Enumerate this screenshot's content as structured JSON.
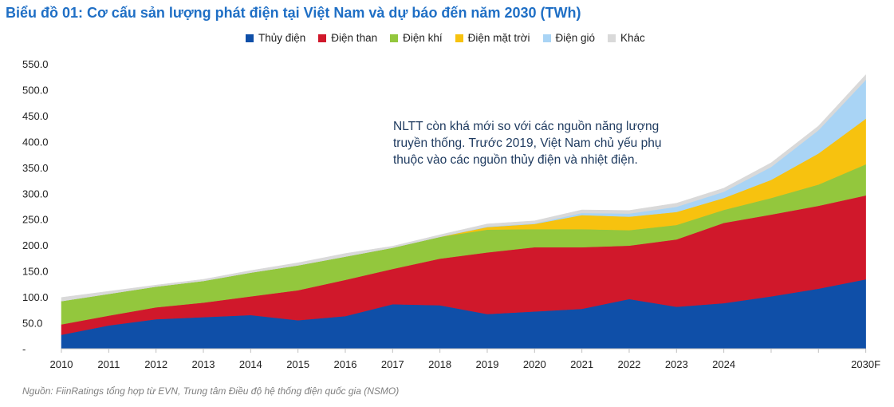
{
  "title": "Biểu đồ 01: Cơ cấu sản lượng phát điện tại Việt Nam và dự báo đến năm 2030 (TWh)",
  "annotation": "NLTT còn khá mới so với các nguồn năng lượng truyền thống. Trước 2019, Việt Nam chủ yếu phụ thuộc vào các nguồn thủy điện và nhiệt điện.",
  "source": "Nguồn: FiinRatings tổng hợp từ EVN, Trung tâm Điều độ hệ thống điện quốc gia (NSMO)",
  "chart_data": {
    "type": "area",
    "stacked": true,
    "x_tick_labels": [
      "2010",
      "2011",
      "2012",
      "2013",
      "2014",
      "2015",
      "2016",
      "2017",
      "2018",
      "2019",
      "2020",
      "2021",
      "2022",
      "2023",
      "2024",
      "",
      "",
      "2030F"
    ],
    "ylim": [
      0,
      550
    ],
    "y_ticks": [
      0,
      50,
      100,
      150,
      200,
      250,
      300,
      350,
      400,
      450,
      500,
      550
    ],
    "y_tick_labels": [
      "-",
      "50.0",
      "100.0",
      "150.0",
      "200.0",
      "250.0",
      "300.0",
      "350.0",
      "400.0",
      "450.0",
      "500.0",
      "550.0"
    ],
    "legend_position": "top",
    "series": [
      {
        "name": "Thủy điện",
        "color": "#0f4fa8",
        "values": [
          27,
          45,
          57,
          61,
          65,
          55,
          63,
          86,
          84,
          67,
          72,
          77,
          96,
          81,
          88,
          101,
          116,
          134
        ]
      },
      {
        "name": "Điện than",
        "color": "#d0182b",
        "values": [
          20,
          19,
          23,
          28,
          36,
          58,
          70,
          68,
          90,
          119,
          124,
          119,
          103,
          130,
          155,
          158,
          160,
          162
        ]
      },
      {
        "name": "Điện khí",
        "color": "#93c73d",
        "values": [
          45,
          42,
          40,
          42,
          46,
          48,
          45,
          41,
          42,
          44,
          35,
          35,
          30,
          28,
          25,
          32,
          41,
          60
        ]
      },
      {
        "name": "Điện mặt trời",
        "color": "#f7c20f",
        "values": [
          0,
          0,
          0,
          0,
          0,
          0,
          0,
          0,
          0,
          5,
          10,
          27,
          26,
          25,
          23,
          35,
          60,
          88
        ]
      },
      {
        "name": "Điện gió",
        "color": "#a9d4f5",
        "values": [
          0,
          0,
          0,
          0,
          0,
          0,
          0,
          0,
          0,
          1,
          1,
          4,
          6,
          10,
          12,
          25,
          45,
          75
        ]
      },
      {
        "name": "Khác",
        "color": "#d9d9d9",
        "values": [
          7,
          5,
          3,
          3,
          4,
          5,
          6,
          3,
          4,
          5,
          5,
          6,
          6,
          7,
          7,
          8,
          8,
          10
        ]
      }
    ]
  }
}
